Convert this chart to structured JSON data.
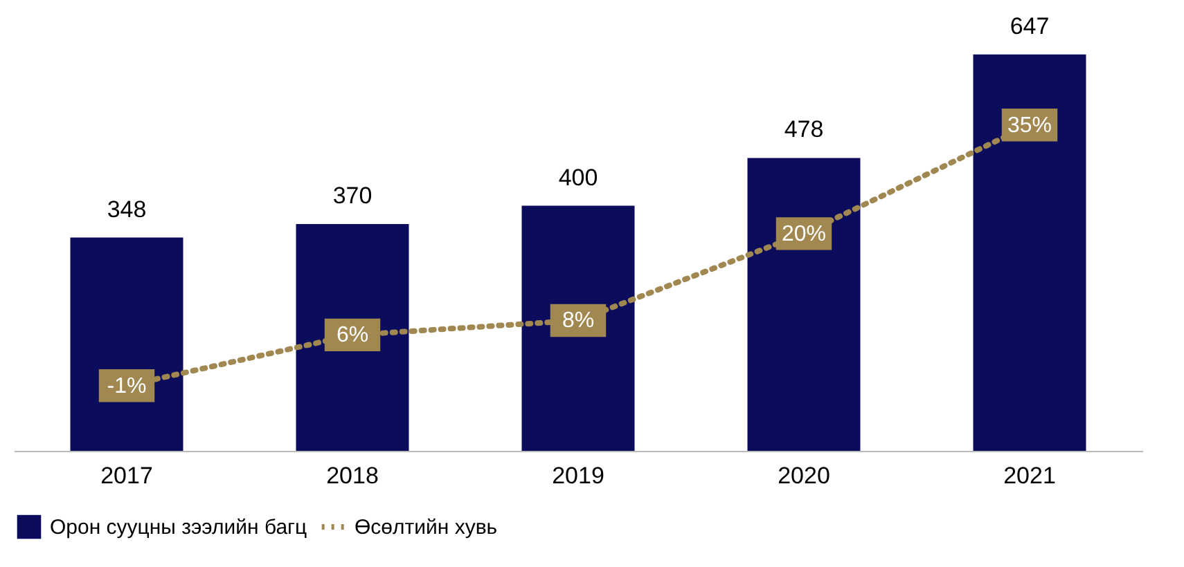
{
  "chart_data": {
    "type": "bar",
    "categories": [
      "2017",
      "2018",
      "2019",
      "2020",
      "2021"
    ],
    "series": [
      {
        "name": "Орон сууцны зээлийн багц",
        "color": "#0c0c5c",
        "values": [
          348,
          370,
          400,
          478,
          647
        ]
      },
      {
        "name": "Өсөлтийн хувь",
        "type": "line",
        "axis": "y2",
        "color": "#a08850",
        "line_style": "dotted",
        "marker": "square",
        "values": [
          -1,
          6,
          8,
          20,
          35
        ],
        "value_labels": [
          "-1%",
          "6%",
          "8%",
          "20%",
          "35%"
        ]
      }
    ],
    "data_labels": true,
    "tick_labels": "x",
    "grid": false,
    "legend": "bottom"
  }
}
